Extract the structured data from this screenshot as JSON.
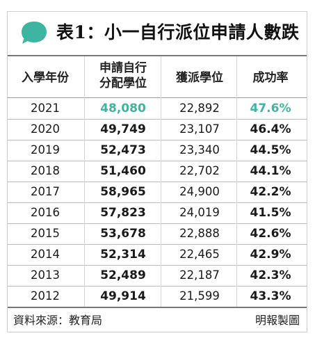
{
  "title": "表1：小一自行派位申請人數跌",
  "colors": {
    "accent": "#3db5a1"
  },
  "icon": "speech-bubble-icon",
  "headers": {
    "year": "入學年份",
    "applicants_line1": "申請自行",
    "applicants_line2": "分配學位",
    "allocated": "獲派學位",
    "rate": "成功率"
  },
  "rows": [
    {
      "year": "2021",
      "applicants": "48,080",
      "allocated": "22,892",
      "rate": "47.6%"
    },
    {
      "year": "2020",
      "applicants": "49,749",
      "allocated": "23,107",
      "rate": "46.4%"
    },
    {
      "year": "2019",
      "applicants": "52,473",
      "allocated": "23,340",
      "rate": "44.5%"
    },
    {
      "year": "2018",
      "applicants": "51,460",
      "allocated": "22,702",
      "rate": "44.1%"
    },
    {
      "year": "2017",
      "applicants": "58,965",
      "allocated": "24,900",
      "rate": "42.2%"
    },
    {
      "year": "2016",
      "applicants": "57,823",
      "allocated": "24,019",
      "rate": "41.5%"
    },
    {
      "year": "2015",
      "applicants": "53,678",
      "allocated": "22,888",
      "rate": "42.6%"
    },
    {
      "year": "2014",
      "applicants": "52,314",
      "allocated": "22,465",
      "rate": "42.9%"
    },
    {
      "year": "2013",
      "applicants": "52,489",
      "allocated": "22,187",
      "rate": "42.3%"
    },
    {
      "year": "2012",
      "applicants": "49,914",
      "allocated": "21,599",
      "rate": "43.3%"
    }
  ],
  "footer": {
    "source": "資料來源：教育局",
    "credit": "明報製圖"
  }
}
